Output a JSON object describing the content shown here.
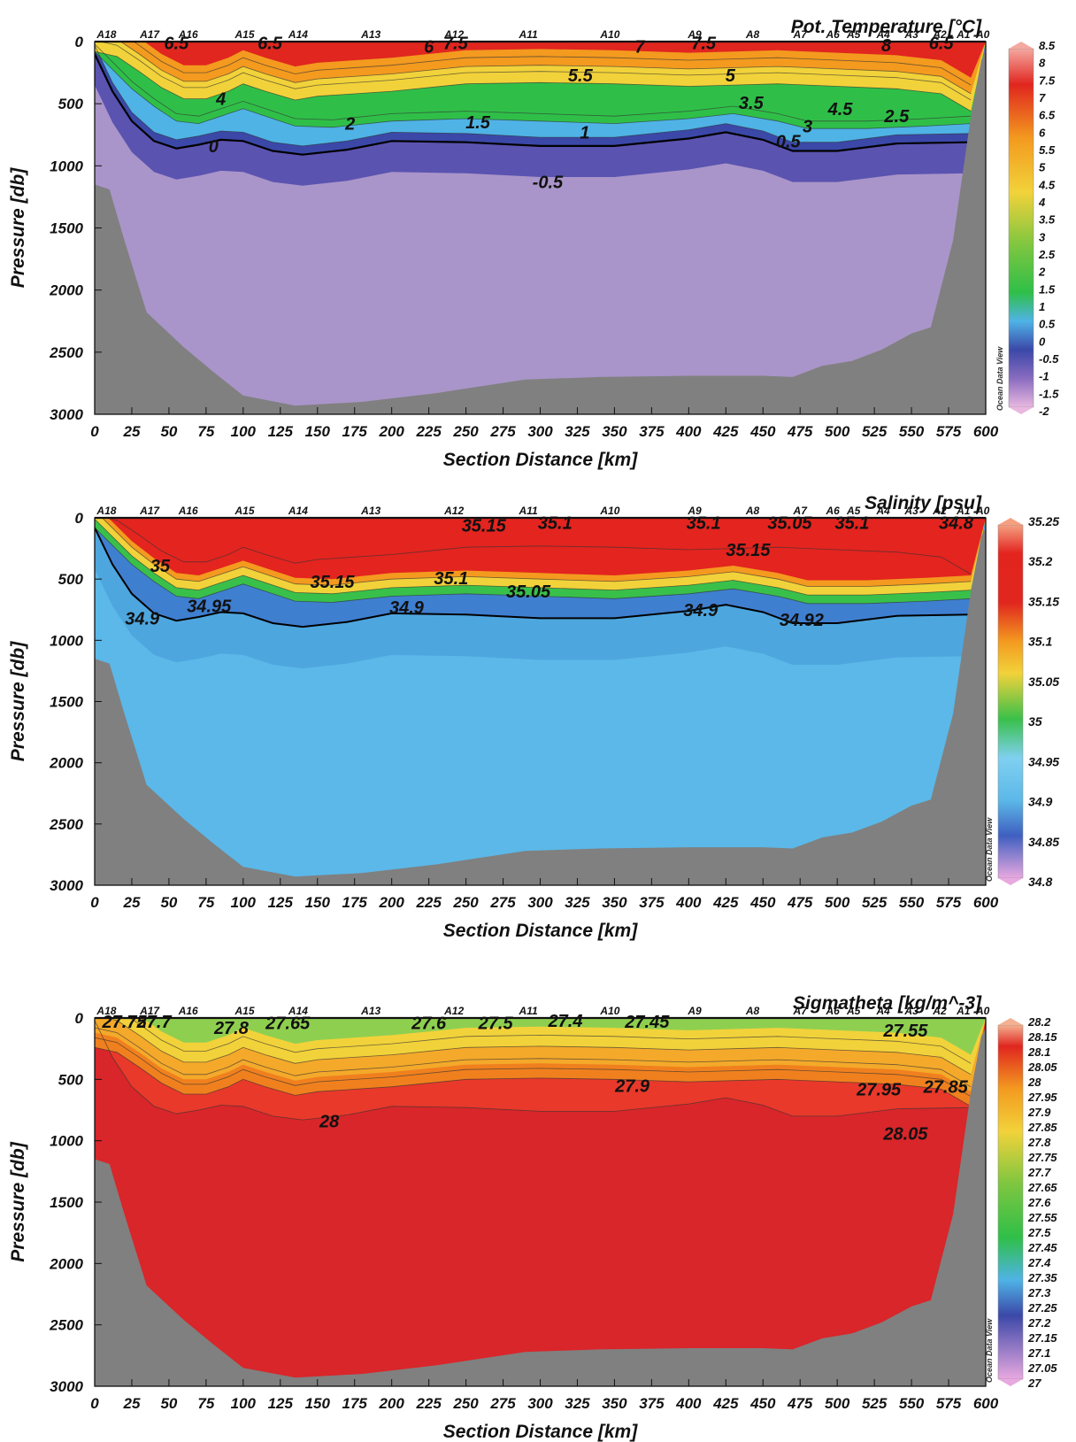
{
  "chart_data": [
    {
      "type": "heatmap",
      "title": "Pot. Temperature [°C]",
      "xlabel": "Section Distance [km]",
      "ylabel": "Pressure [db]",
      "xlim": [
        0,
        600
      ],
      "ylim": [
        3000,
        0
      ],
      "x_ticks": [
        0,
        25,
        50,
        75,
        100,
        125,
        150,
        175,
        200,
        225,
        250,
        275,
        300,
        325,
        350,
        375,
        400,
        425,
        450,
        475,
        500,
        525,
        550,
        575,
        600
      ],
      "y_ticks": [
        0,
        500,
        1000,
        1500,
        2000,
        2500,
        3000
      ],
      "stations": [
        {
          "name": "A18",
          "x": 8
        },
        {
          "name": "A17",
          "x": 37
        },
        {
          "name": "A16",
          "x": 63
        },
        {
          "name": "A15",
          "x": 101
        },
        {
          "name": "A14",
          "x": 137
        },
        {
          "name": "A13",
          "x": 186
        },
        {
          "name": "A12",
          "x": 242
        },
        {
          "name": "A11",
          "x": 292
        },
        {
          "name": "A10",
          "x": 347
        },
        {
          "name": "A9",
          "x": 404
        },
        {
          "name": "A8",
          "x": 443
        },
        {
          "name": "A7",
          "x": 475
        },
        {
          "name": "A6",
          "x": 497
        },
        {
          "name": "A5",
          "x": 511
        },
        {
          "name": "A4",
          "x": 531
        },
        {
          "name": "A3",
          "x": 550
        },
        {
          "name": "A2",
          "x": 569
        },
        {
          "name": "A1",
          "x": 585
        },
        {
          "name": "A0",
          "x": 598
        }
      ],
      "colorbar": {
        "min": -2,
        "max": 8.5,
        "step": 0.5,
        "ticks": [
          "8.5",
          "8",
          "7.5",
          "7",
          "6.5",
          "6",
          "5.5",
          "5",
          "4.5",
          "4",
          "3.5",
          "3",
          "2.5",
          "2",
          "1.5",
          "1",
          "0.5",
          "0",
          "-0.5",
          "-1",
          "-1.5",
          "-2"
        ]
      },
      "contour_labels": [
        {
          "text": "6.5",
          "x": 55,
          "p": 10
        },
        {
          "text": "6.5",
          "x": 118,
          "p": 10
        },
        {
          "text": "6",
          "x": 225,
          "p": 40
        },
        {
          "text": "7.5",
          "x": 243,
          "p": 10
        },
        {
          "text": "7",
          "x": 367,
          "p": 40
        },
        {
          "text": "7.5",
          "x": 410,
          "p": 10
        },
        {
          "text": "8",
          "x": 533,
          "p": 30
        },
        {
          "text": "6.5",
          "x": 570,
          "p": 10
        },
        {
          "text": "5.5",
          "x": 327,
          "p": 270
        },
        {
          "text": "5",
          "x": 428,
          "p": 270
        },
        {
          "text": "4",
          "x": 85,
          "p": 460
        },
        {
          "text": "3.5",
          "x": 442,
          "p": 490
        },
        {
          "text": "4.5",
          "x": 502,
          "p": 540
        },
        {
          "text": "2.5",
          "x": 540,
          "p": 600
        },
        {
          "text": "3",
          "x": 480,
          "p": 680
        },
        {
          "text": "2",
          "x": 172,
          "p": 660
        },
        {
          "text": "1.5",
          "x": 258,
          "p": 650
        },
        {
          "text": "1",
          "x": 330,
          "p": 730
        },
        {
          "text": "0.5",
          "x": 467,
          "p": 800
        },
        {
          "text": "0",
          "x": 80,
          "p": 840
        },
        {
          "text": "-0.5",
          "x": 305,
          "p": 1130
        }
      ]
    },
    {
      "type": "heatmap",
      "title": "Salinity [psu]",
      "xlabel": "Section Distance [km]",
      "ylabel": "Pressure [db]",
      "xlim": [
        0,
        600
      ],
      "ylim": [
        3000,
        0
      ],
      "x_ticks": [
        0,
        25,
        50,
        75,
        100,
        125,
        150,
        175,
        200,
        225,
        250,
        275,
        300,
        325,
        350,
        375,
        400,
        425,
        450,
        475,
        500,
        525,
        550,
        575,
        600
      ],
      "y_ticks": [
        0,
        500,
        1000,
        1500,
        2000,
        2500,
        3000
      ],
      "stations": [
        {
          "name": "A18",
          "x": 8
        },
        {
          "name": "A17",
          "x": 37
        },
        {
          "name": "A16",
          "x": 63
        },
        {
          "name": "A15",
          "x": 101
        },
        {
          "name": "A14",
          "x": 137
        },
        {
          "name": "A13",
          "x": 186
        },
        {
          "name": "A12",
          "x": 242
        },
        {
          "name": "A11",
          "x": 292
        },
        {
          "name": "A10",
          "x": 347
        },
        {
          "name": "A9",
          "x": 404
        },
        {
          "name": "A8",
          "x": 443
        },
        {
          "name": "A7",
          "x": 475
        },
        {
          "name": "A6",
          "x": 497
        },
        {
          "name": "A5",
          "x": 511
        },
        {
          "name": "A4",
          "x": 531
        },
        {
          "name": "A3",
          "x": 550
        },
        {
          "name": "A2",
          "x": 569
        },
        {
          "name": "A1",
          "x": 585
        },
        {
          "name": "A0",
          "x": 598
        }
      ],
      "colorbar": {
        "min": 34.8,
        "max": 35.25,
        "step": 0.05,
        "ticks": [
          "35.25",
          "35.2",
          "35.15",
          "35.1",
          "35.05",
          "35",
          "34.95",
          "34.9",
          "34.85",
          "34.8"
        ]
      },
      "contour_labels": [
        {
          "text": "35.15",
          "x": 262,
          "p": 60
        },
        {
          "text": "35.1",
          "x": 310,
          "p": 40
        },
        {
          "text": "35.1",
          "x": 410,
          "p": 40
        },
        {
          "text": "35.05",
          "x": 468,
          "p": 40
        },
        {
          "text": "35.1",
          "x": 510,
          "p": 40
        },
        {
          "text": "34.8",
          "x": 580,
          "p": 40
        },
        {
          "text": "35.15",
          "x": 440,
          "p": 260
        },
        {
          "text": "35",
          "x": 44,
          "p": 390
        },
        {
          "text": "35.15",
          "x": 160,
          "p": 520
        },
        {
          "text": "35.1",
          "x": 240,
          "p": 490
        },
        {
          "text": "35.05",
          "x": 292,
          "p": 600
        },
        {
          "text": "34.95",
          "x": 77,
          "p": 720
        },
        {
          "text": "34.9",
          "x": 210,
          "p": 730
        },
        {
          "text": "34.9",
          "x": 408,
          "p": 750
        },
        {
          "text": "34.9",
          "x": 32,
          "p": 820
        },
        {
          "text": "34.92",
          "x": 476,
          "p": 830
        }
      ]
    },
    {
      "type": "heatmap",
      "title": "Sigmatheta [kg/m^-3]",
      "xlabel": "Section Distance [km]",
      "ylabel": "Pressure [db]",
      "xlim": [
        0,
        600
      ],
      "ylim": [
        3000,
        0
      ],
      "x_ticks": [
        0,
        25,
        50,
        75,
        100,
        125,
        150,
        175,
        200,
        225,
        250,
        275,
        300,
        325,
        350,
        375,
        400,
        425,
        450,
        475,
        500,
        525,
        550,
        575,
        600
      ],
      "y_ticks": [
        0,
        500,
        1000,
        1500,
        2000,
        2500,
        3000
      ],
      "stations": [
        {
          "name": "A18",
          "x": 8
        },
        {
          "name": "A17",
          "x": 37
        },
        {
          "name": "A16",
          "x": 63
        },
        {
          "name": "A15",
          "x": 101
        },
        {
          "name": "A14",
          "x": 137
        },
        {
          "name": "A13",
          "x": 186
        },
        {
          "name": "A12",
          "x": 242
        },
        {
          "name": "A11",
          "x": 292
        },
        {
          "name": "A10",
          "x": 347
        },
        {
          "name": "A9",
          "x": 404
        },
        {
          "name": "A8",
          "x": 443
        },
        {
          "name": "A7",
          "x": 475
        },
        {
          "name": "A6",
          "x": 497
        },
        {
          "name": "A5",
          "x": 511
        },
        {
          "name": "A4",
          "x": 531
        },
        {
          "name": "A3",
          "x": 550
        },
        {
          "name": "A2",
          "x": 569
        },
        {
          "name": "A1",
          "x": 585
        },
        {
          "name": "A0",
          "x": 598
        }
      ],
      "colorbar": {
        "min": 27,
        "max": 28.2,
        "step": 0.05,
        "ticks": [
          "28.2",
          "28.15",
          "28.1",
          "28.05",
          "28",
          "27.95",
          "27.9",
          "27.85",
          "27.8",
          "27.75",
          "27.7",
          "27.65",
          "27.6",
          "27.55",
          "27.5",
          "27.45",
          "27.4",
          "27.35",
          "27.3",
          "27.25",
          "27.2",
          "27.15",
          "27.1",
          "27.05",
          "27"
        ]
      },
      "contour_labels": [
        {
          "text": "27.75",
          "x": 20,
          "p": 30
        },
        {
          "text": "27.7",
          "x": 40,
          "p": 30
        },
        {
          "text": "27.8",
          "x": 92,
          "p": 80
        },
        {
          "text": "27.65",
          "x": 130,
          "p": 40
        },
        {
          "text": "27.6",
          "x": 225,
          "p": 40
        },
        {
          "text": "27.5",
          "x": 270,
          "p": 40
        },
        {
          "text": "27.4",
          "x": 317,
          "p": 20
        },
        {
          "text": "27.45",
          "x": 372,
          "p": 30
        },
        {
          "text": "27.55",
          "x": 546,
          "p": 100
        },
        {
          "text": "27.9",
          "x": 362,
          "p": 550
        },
        {
          "text": "27.95",
          "x": 528,
          "p": 580
        },
        {
          "text": "27.85",
          "x": 573,
          "p": 560
        },
        {
          "text": "28",
          "x": 158,
          "p": 840
        },
        {
          "text": "28.05",
          "x": 546,
          "p": 940
        }
      ]
    }
  ],
  "watermark": "Ocean Data View"
}
